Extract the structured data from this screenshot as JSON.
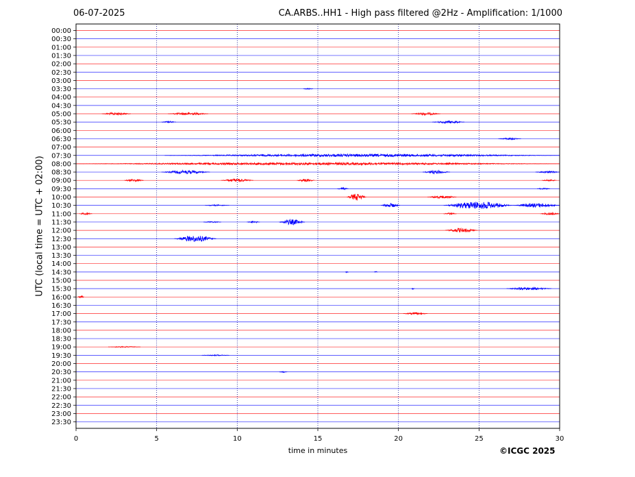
{
  "header": {
    "date": "06-07-2025",
    "title": "CA.ARBS..HH1 - High pass filtered @2Hz - Amplification: 1/1000"
  },
  "copyright": "©ICGC 2025",
  "colors": {
    "red": "#ff0000",
    "blue": "#0000ff",
    "grid": "#00008b"
  },
  "chart_data": {
    "type": "line",
    "xlabel": "time in minutes",
    "ylabel": "UTC (local time = UTC + 02:00)",
    "xlim": [
      0,
      30
    ],
    "xticks": [
      "0",
      "5",
      "10",
      "15",
      "20",
      "25",
      "30"
    ],
    "grid": "vertical dotted lines at every 5 minutes",
    "rows": [
      "00:00",
      "00:30",
      "01:00",
      "01:30",
      "02:00",
      "02:30",
      "03:00",
      "03:30",
      "04:00",
      "04:30",
      "05:00",
      "05:30",
      "06:00",
      "06:30",
      "07:00",
      "07:30",
      "08:00",
      "08:30",
      "09:00",
      "09:30",
      "10:00",
      "10:30",
      "11:00",
      "11:30",
      "12:00",
      "12:30",
      "13:00",
      "13:30",
      "14:00",
      "14:30",
      "15:00",
      "15:30",
      "16:00",
      "16:30",
      "17:00",
      "17:30",
      "18:00",
      "18:30",
      "19:00",
      "19:30",
      "20:00",
      "20:30",
      "21:00",
      "21:30",
      "22:00",
      "22:30",
      "23:00",
      "23:30"
    ],
    "row_colors": "alternating red (full hours) and blue (half hours)",
    "events": [
      {
        "row": "03:30",
        "start_min": 14.1,
        "end_min": 14.7,
        "amplitude": 1
      },
      {
        "row": "05:00",
        "start_min": 1.6,
        "end_min": 3.4,
        "amplitude": 2
      },
      {
        "row": "05:00",
        "start_min": 5.7,
        "end_min": 8.2,
        "amplitude": 2
      },
      {
        "row": "05:00",
        "start_min": 20.8,
        "end_min": 22.6,
        "amplitude": 2
      },
      {
        "row": "05:30",
        "start_min": 5.3,
        "end_min": 6.2,
        "amplitude": 1.5
      },
      {
        "row": "05:30",
        "start_min": 22.1,
        "end_min": 24.1,
        "amplitude": 2
      },
      {
        "row": "06:30",
        "start_min": 26.2,
        "end_min": 27.6,
        "amplitude": 1.5
      },
      {
        "row": "07:30",
        "start_min": 5.5,
        "end_min": 30,
        "amplitude": 2
      },
      {
        "row": "08:00",
        "start_min": 0,
        "end_min": 30,
        "amplitude": 1.8
      },
      {
        "row": "08:30",
        "start_min": 5.3,
        "end_min": 8.3,
        "amplitude": 2.5
      },
      {
        "row": "08:30",
        "start_min": 21.5,
        "end_min": 23.2,
        "amplitude": 2.5
      },
      {
        "row": "08:30",
        "start_min": 28.5,
        "end_min": 30,
        "amplitude": 1.5
      },
      {
        "row": "09:00",
        "start_min": 3.0,
        "end_min": 4.2,
        "amplitude": 2
      },
      {
        "row": "09:00",
        "start_min": 9.0,
        "end_min": 11.0,
        "amplitude": 2.5
      },
      {
        "row": "09:00",
        "start_min": 13.7,
        "end_min": 14.8,
        "amplitude": 2
      },
      {
        "row": "09:00",
        "start_min": 28.9,
        "end_min": 29.8,
        "amplitude": 1.5
      },
      {
        "row": "09:30",
        "start_min": 16.2,
        "end_min": 16.9,
        "amplitude": 1.5
      },
      {
        "row": "09:30",
        "start_min": 28.6,
        "end_min": 29.4,
        "amplitude": 1
      },
      {
        "row": "10:00",
        "start_min": 16.8,
        "end_min": 18.0,
        "amplitude": 5
      },
      {
        "row": "10:00",
        "start_min": 21.8,
        "end_min": 23.6,
        "amplitude": 2
      },
      {
        "row": "10:30",
        "start_min": 8.0,
        "end_min": 9.5,
        "amplitude": 1
      },
      {
        "row": "10:30",
        "start_min": 18.9,
        "end_min": 20.1,
        "amplitude": 3
      },
      {
        "row": "10:30",
        "start_min": 22.8,
        "end_min": 27.1,
        "amplitude": 5.5
      },
      {
        "row": "10:30",
        "start_min": 27.1,
        "end_min": 30,
        "amplitude": 3
      },
      {
        "row": "11:00",
        "start_min": 0.2,
        "end_min": 1.0,
        "amplitude": 1.5
      },
      {
        "row": "11:00",
        "start_min": 22.8,
        "end_min": 23.6,
        "amplitude": 1.5
      },
      {
        "row": "11:00",
        "start_min": 28.8,
        "end_min": 30,
        "amplitude": 2
      },
      {
        "row": "11:30",
        "start_min": 7.9,
        "end_min": 9.0,
        "amplitude": 1
      },
      {
        "row": "11:30",
        "start_min": 10.6,
        "end_min": 11.4,
        "amplitude": 1.5
      },
      {
        "row": "11:30",
        "start_min": 12.6,
        "end_min": 14.2,
        "amplitude": 4
      },
      {
        "row": "12:00",
        "start_min": 22.9,
        "end_min": 24.9,
        "amplitude": 3
      },
      {
        "row": "12:30",
        "start_min": 6.1,
        "end_min": 8.7,
        "amplitude": 4.5
      },
      {
        "row": "14:30",
        "start_min": 16.7,
        "end_min": 16.9,
        "amplitude": 1.5
      },
      {
        "row": "14:30",
        "start_min": 18.5,
        "end_min": 18.7,
        "amplitude": 1
      },
      {
        "row": "15:30",
        "start_min": 20.8,
        "end_min": 21.0,
        "amplitude": 1
      },
      {
        "row": "15:30",
        "start_min": 26.7,
        "end_min": 29.5,
        "amplitude": 2
      },
      {
        "row": "16:00",
        "start_min": 0.1,
        "end_min": 0.5,
        "amplitude": 2
      },
      {
        "row": "17:00",
        "start_min": 20.3,
        "end_min": 21.8,
        "amplitude": 1.5
      },
      {
        "row": "19:00",
        "start_min": 2.0,
        "end_min": 4.0,
        "amplitude": 0.8
      },
      {
        "row": "19:30",
        "start_min": 7.8,
        "end_min": 9.5,
        "amplitude": 0.8
      },
      {
        "row": "20:30",
        "start_min": 12.6,
        "end_min": 13.1,
        "amplitude": 1
      }
    ]
  }
}
